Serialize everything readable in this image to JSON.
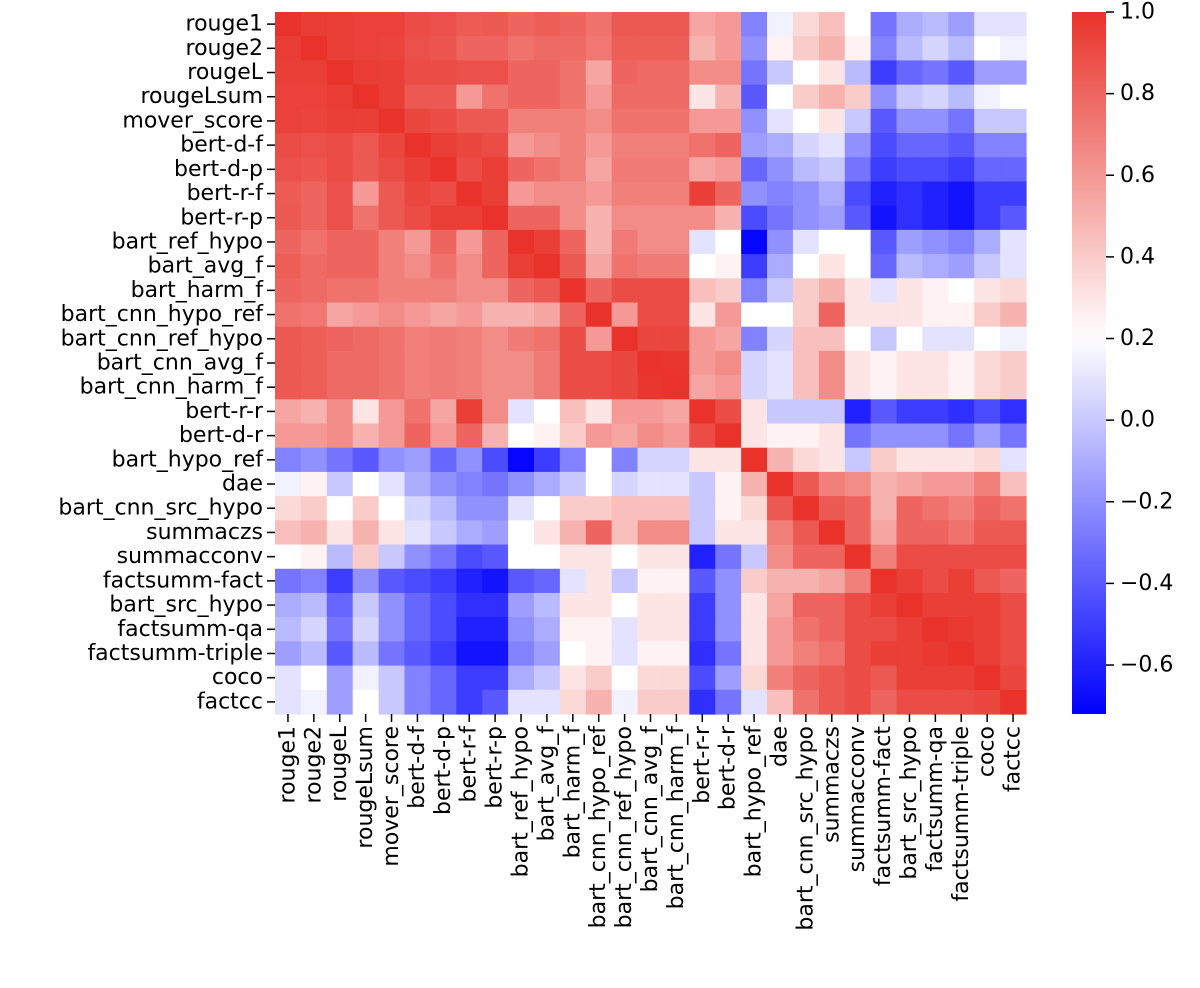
{
  "chart_data": {
    "type": "heatmap",
    "title": "",
    "xlabel": "",
    "ylabel": "",
    "labels": [
      "rouge1",
      "rouge2",
      "rougeL",
      "rougeLsum",
      "mover_score",
      "bert-d-f",
      "bert-d-p",
      "bert-r-f",
      "bert-r-p",
      "bart_ref_hypo",
      "bart_avg_f",
      "bart_harm_f",
      "bart_cnn_hypo_ref",
      "bart_cnn_ref_hypo",
      "bart_cnn_avg_f",
      "bart_cnn_harm_f",
      "bert-r-r",
      "bert-d-r",
      "bart_hypo_ref",
      "dae",
      "bart_cnn_src_hypo",
      "summaczs",
      "summacconv",
      "factsumm-fact",
      "bart_src_hypo",
      "factsumm-qa",
      "factsumm-triple",
      "coco",
      "factcc"
    ],
    "colorbar": {
      "min": -0.72,
      "max": 1.0,
      "ticks": [
        "1.0",
        "0.8",
        "0.6",
        "0.4",
        "0.2",
        "0.0",
        "−0.2",
        "−0.4",
        "−0.6"
      ],
      "tick_values": [
        1.0,
        0.8,
        0.6,
        0.4,
        0.2,
        0.0,
        -0.2,
        -0.4,
        -0.6
      ],
      "colormap": {
        "low": "#0000ff",
        "mid": "#ffffff",
        "high": "#e8322a",
        "mid_value": 0.2
      }
    },
    "values": [
      [
        1.0,
        0.96,
        0.95,
        0.94,
        0.94,
        0.9,
        0.88,
        0.84,
        0.85,
        0.8,
        0.83,
        0.8,
        0.75,
        0.85,
        0.85,
        0.85,
        0.55,
        0.6,
        -0.25,
        0.15,
        0.35,
        0.45,
        0.2,
        -0.3,
        -0.1,
        -0.05,
        -0.15,
        0.1,
        0.1
      ],
      [
        0.96,
        1.0,
        0.95,
        0.94,
        0.93,
        0.88,
        0.86,
        0.8,
        0.8,
        0.75,
        0.78,
        0.78,
        0.73,
        0.83,
        0.83,
        0.83,
        0.5,
        0.6,
        -0.2,
        0.25,
        0.4,
        0.5,
        0.25,
        -0.25,
        -0.05,
        0.05,
        -0.05,
        0.2,
        0.15
      ],
      [
        0.95,
        0.95,
        1.0,
        0.96,
        0.95,
        0.9,
        0.9,
        0.88,
        0.88,
        0.8,
        0.8,
        0.75,
        0.55,
        0.8,
        0.78,
        0.78,
        0.65,
        0.65,
        -0.3,
        0.0,
        0.2,
        0.3,
        -0.05,
        -0.5,
        -0.35,
        -0.3,
        -0.4,
        -0.15,
        -0.15
      ],
      [
        0.94,
        0.94,
        0.96,
        1.0,
        0.95,
        0.85,
        0.85,
        0.6,
        0.75,
        0.8,
        0.8,
        0.75,
        0.6,
        0.78,
        0.78,
        0.78,
        0.3,
        0.5,
        -0.4,
        0.2,
        0.4,
        0.5,
        0.4,
        -0.2,
        0.0,
        0.05,
        -0.05,
        0.15,
        0.2
      ],
      [
        0.94,
        0.93,
        0.95,
        0.95,
        1.0,
        0.92,
        0.9,
        0.85,
        0.85,
        0.7,
        0.7,
        0.7,
        0.65,
        0.75,
        0.75,
        0.75,
        0.6,
        0.6,
        -0.2,
        0.1,
        0.2,
        0.3,
        0.0,
        -0.4,
        -0.2,
        -0.2,
        -0.3,
        0.0,
        0.0
      ],
      [
        0.9,
        0.88,
        0.9,
        0.85,
        0.92,
        1.0,
        0.95,
        0.92,
        0.9,
        0.6,
        0.65,
        0.7,
        0.6,
        0.7,
        0.7,
        0.7,
        0.75,
        0.8,
        -0.15,
        -0.1,
        0.05,
        0.1,
        -0.2,
        -0.45,
        -0.35,
        -0.35,
        -0.4,
        -0.25,
        -0.25
      ],
      [
        0.88,
        0.86,
        0.9,
        0.85,
        0.9,
        0.95,
        1.0,
        0.9,
        0.95,
        0.8,
        0.75,
        0.7,
        0.55,
        0.72,
        0.72,
        0.72,
        0.55,
        0.6,
        -0.35,
        -0.2,
        -0.05,
        0.0,
        -0.3,
        -0.5,
        -0.45,
        -0.45,
        -0.5,
        -0.35,
        -0.35
      ],
      [
        0.84,
        0.8,
        0.88,
        0.6,
        0.85,
        0.92,
        0.9,
        1.0,
        0.95,
        0.6,
        0.65,
        0.65,
        0.6,
        0.7,
        0.7,
        0.7,
        0.95,
        0.8,
        -0.2,
        -0.25,
        -0.2,
        -0.1,
        -0.45,
        -0.6,
        -0.55,
        -0.6,
        -0.65,
        -0.5,
        -0.5
      ],
      [
        0.85,
        0.8,
        0.88,
        0.75,
        0.85,
        0.9,
        0.95,
        0.95,
        1.0,
        0.8,
        0.8,
        0.65,
        0.5,
        0.65,
        0.65,
        0.65,
        0.65,
        0.5,
        -0.45,
        -0.3,
        -0.2,
        -0.15,
        -0.4,
        -0.65,
        -0.55,
        -0.6,
        -0.65,
        -0.5,
        -0.4
      ],
      [
        0.8,
        0.75,
        0.8,
        0.8,
        0.7,
        0.6,
        0.8,
        0.6,
        0.8,
        1.0,
        0.95,
        0.8,
        0.5,
        0.72,
        0.65,
        0.65,
        0.1,
        0.2,
        -0.7,
        -0.2,
        0.1,
        0.2,
        0.2,
        -0.4,
        -0.15,
        -0.2,
        -0.25,
        -0.1,
        0.1
      ],
      [
        0.83,
        0.78,
        0.8,
        0.8,
        0.7,
        0.65,
        0.75,
        0.65,
        0.8,
        0.95,
        1.0,
        0.85,
        0.55,
        0.75,
        0.72,
        0.72,
        0.2,
        0.25,
        -0.5,
        -0.1,
        0.2,
        0.3,
        0.2,
        -0.35,
        -0.05,
        -0.1,
        -0.15,
        0.0,
        0.1
      ],
      [
        0.8,
        0.78,
        0.75,
        0.75,
        0.7,
        0.7,
        0.7,
        0.65,
        0.65,
        0.8,
        0.85,
        1.0,
        0.8,
        0.9,
        0.9,
        0.9,
        0.45,
        0.4,
        -0.25,
        0.0,
        0.4,
        0.5,
        0.3,
        0.1,
        0.3,
        0.25,
        0.2,
        0.3,
        0.35
      ],
      [
        0.75,
        0.73,
        0.55,
        0.6,
        0.65,
        0.6,
        0.55,
        0.6,
        0.5,
        0.5,
        0.55,
        0.8,
        1.0,
        0.6,
        0.9,
        0.9,
        0.3,
        0.6,
        0.2,
        0.2,
        0.4,
        0.8,
        0.3,
        0.3,
        0.3,
        0.25,
        0.25,
        0.4,
        0.5
      ],
      [
        0.85,
        0.83,
        0.8,
        0.78,
        0.75,
        0.7,
        0.72,
        0.7,
        0.65,
        0.72,
        0.75,
        0.9,
        0.6,
        1.0,
        0.92,
        0.92,
        0.6,
        0.55,
        -0.25,
        0.05,
        0.45,
        0.45,
        0.2,
        0.0,
        0.2,
        0.1,
        0.1,
        0.2,
        0.15
      ],
      [
        0.85,
        0.83,
        0.78,
        0.78,
        0.75,
        0.7,
        0.72,
        0.7,
        0.65,
        0.65,
        0.72,
        0.9,
        0.9,
        0.92,
        1.0,
        0.98,
        0.6,
        0.65,
        0.05,
        0.1,
        0.45,
        0.65,
        0.3,
        0.25,
        0.3,
        0.3,
        0.25,
        0.35,
        0.4
      ],
      [
        0.85,
        0.83,
        0.78,
        0.78,
        0.75,
        0.7,
        0.72,
        0.7,
        0.65,
        0.65,
        0.72,
        0.9,
        0.9,
        0.92,
        0.98,
        1.0,
        0.55,
        0.6,
        0.05,
        0.1,
        0.45,
        0.65,
        0.3,
        0.25,
        0.3,
        0.3,
        0.25,
        0.35,
        0.4
      ],
      [
        0.55,
        0.5,
        0.65,
        0.3,
        0.6,
        0.75,
        0.55,
        0.95,
        0.65,
        0.1,
        0.2,
        0.45,
        0.3,
        0.6,
        0.6,
        0.55,
        1.0,
        0.9,
        0.3,
        0.0,
        0.0,
        0.0,
        -0.6,
        -0.4,
        -0.5,
        -0.5,
        -0.55,
        -0.45,
        -0.55
      ],
      [
        0.6,
        0.6,
        0.65,
        0.5,
        0.6,
        0.8,
        0.6,
        0.8,
        0.5,
        0.2,
        0.25,
        0.4,
        0.6,
        0.55,
        0.65,
        0.6,
        0.9,
        1.0,
        0.3,
        0.25,
        0.25,
        0.3,
        -0.3,
        -0.2,
        -0.2,
        -0.2,
        -0.3,
        -0.15,
        -0.3
      ],
      [
        -0.25,
        -0.2,
        -0.3,
        -0.4,
        -0.2,
        -0.15,
        -0.35,
        -0.2,
        -0.45,
        -0.7,
        -0.5,
        -0.25,
        0.2,
        -0.25,
        0.05,
        0.05,
        0.3,
        0.3,
        1.0,
        0.5,
        0.35,
        0.3,
        0.0,
        0.4,
        0.3,
        0.3,
        0.3,
        0.35,
        0.1
      ],
      [
        0.15,
        0.25,
        0.0,
        0.2,
        0.1,
        -0.1,
        -0.2,
        -0.25,
        -0.3,
        -0.2,
        -0.1,
        0.0,
        0.2,
        0.05,
        0.1,
        0.1,
        0.0,
        0.25,
        0.5,
        1.0,
        0.85,
        0.7,
        0.65,
        0.5,
        0.55,
        0.6,
        0.6,
        0.7,
        0.45
      ],
      [
        0.35,
        0.4,
        0.2,
        0.4,
        0.2,
        0.05,
        -0.05,
        -0.2,
        -0.2,
        0.1,
        0.2,
        0.4,
        0.4,
        0.45,
        0.45,
        0.45,
        0.0,
        0.25,
        0.35,
        0.85,
        1.0,
        0.85,
        0.8,
        0.5,
        0.8,
        0.75,
        0.7,
        0.8,
        0.75
      ],
      [
        0.45,
        0.5,
        0.3,
        0.5,
        0.3,
        0.1,
        0.0,
        -0.1,
        -0.15,
        0.2,
        0.3,
        0.5,
        0.8,
        0.45,
        0.65,
        0.65,
        0.0,
        0.3,
        0.3,
        0.7,
        0.85,
        1.0,
        0.8,
        0.55,
        0.8,
        0.8,
        0.75,
        0.85,
        0.85
      ],
      [
        0.2,
        0.25,
        -0.05,
        0.4,
        0.0,
        -0.2,
        -0.3,
        -0.45,
        -0.4,
        0.2,
        0.2,
        0.3,
        0.3,
        0.2,
        0.3,
        0.3,
        -0.6,
        -0.3,
        0.0,
        0.65,
        0.8,
        0.8,
        1.0,
        0.7,
        0.9,
        0.9,
        0.9,
        0.9,
        0.9
      ],
      [
        -0.3,
        -0.25,
        -0.5,
        -0.2,
        -0.4,
        -0.45,
        -0.5,
        -0.6,
        -0.65,
        -0.4,
        -0.35,
        0.1,
        0.3,
        0.0,
        0.25,
        0.25,
        -0.4,
        -0.2,
        0.4,
        0.5,
        0.5,
        0.55,
        0.7,
        1.0,
        0.95,
        0.9,
        0.95,
        0.85,
        0.8
      ],
      [
        -0.1,
        -0.05,
        -0.35,
        0.0,
        -0.2,
        -0.35,
        -0.45,
        -0.55,
        -0.55,
        -0.15,
        -0.05,
        0.3,
        0.3,
        0.2,
        0.3,
        0.3,
        -0.5,
        -0.2,
        0.3,
        0.55,
        0.8,
        0.8,
        0.9,
        0.95,
        1.0,
        0.95,
        0.95,
        0.95,
        0.9
      ],
      [
        -0.05,
        0.05,
        -0.3,
        0.05,
        -0.2,
        -0.35,
        -0.45,
        -0.6,
        -0.6,
        -0.2,
        -0.1,
        0.25,
        0.25,
        0.1,
        0.3,
        0.3,
        -0.5,
        -0.2,
        0.3,
        0.6,
        0.75,
        0.8,
        0.9,
        0.9,
        0.95,
        1.0,
        0.97,
        0.95,
        0.9
      ],
      [
        -0.15,
        -0.05,
        -0.4,
        -0.05,
        -0.3,
        -0.4,
        -0.5,
        -0.65,
        -0.65,
        -0.25,
        -0.15,
        0.2,
        0.25,
        0.1,
        0.25,
        0.25,
        -0.55,
        -0.3,
        0.3,
        0.6,
        0.7,
        0.75,
        0.9,
        0.95,
        0.95,
        0.97,
        1.0,
        0.95,
        0.9
      ],
      [
        0.1,
        0.2,
        -0.15,
        0.15,
        0.0,
        -0.25,
        -0.35,
        -0.5,
        -0.5,
        -0.1,
        0.0,
        0.3,
        0.4,
        0.2,
        0.35,
        0.35,
        -0.45,
        -0.15,
        0.35,
        0.7,
        0.8,
        0.85,
        0.9,
        0.85,
        0.95,
        0.95,
        0.95,
        1.0,
        0.92
      ],
      [
        0.1,
        0.15,
        -0.15,
        0.2,
        0.0,
        -0.25,
        -0.35,
        -0.5,
        -0.4,
        0.1,
        0.1,
        0.35,
        0.5,
        0.15,
        0.4,
        0.4,
        -0.55,
        -0.3,
        0.1,
        0.45,
        0.75,
        0.85,
        0.9,
        0.8,
        0.9,
        0.9,
        0.9,
        0.92,
        1.0
      ]
    ]
  }
}
